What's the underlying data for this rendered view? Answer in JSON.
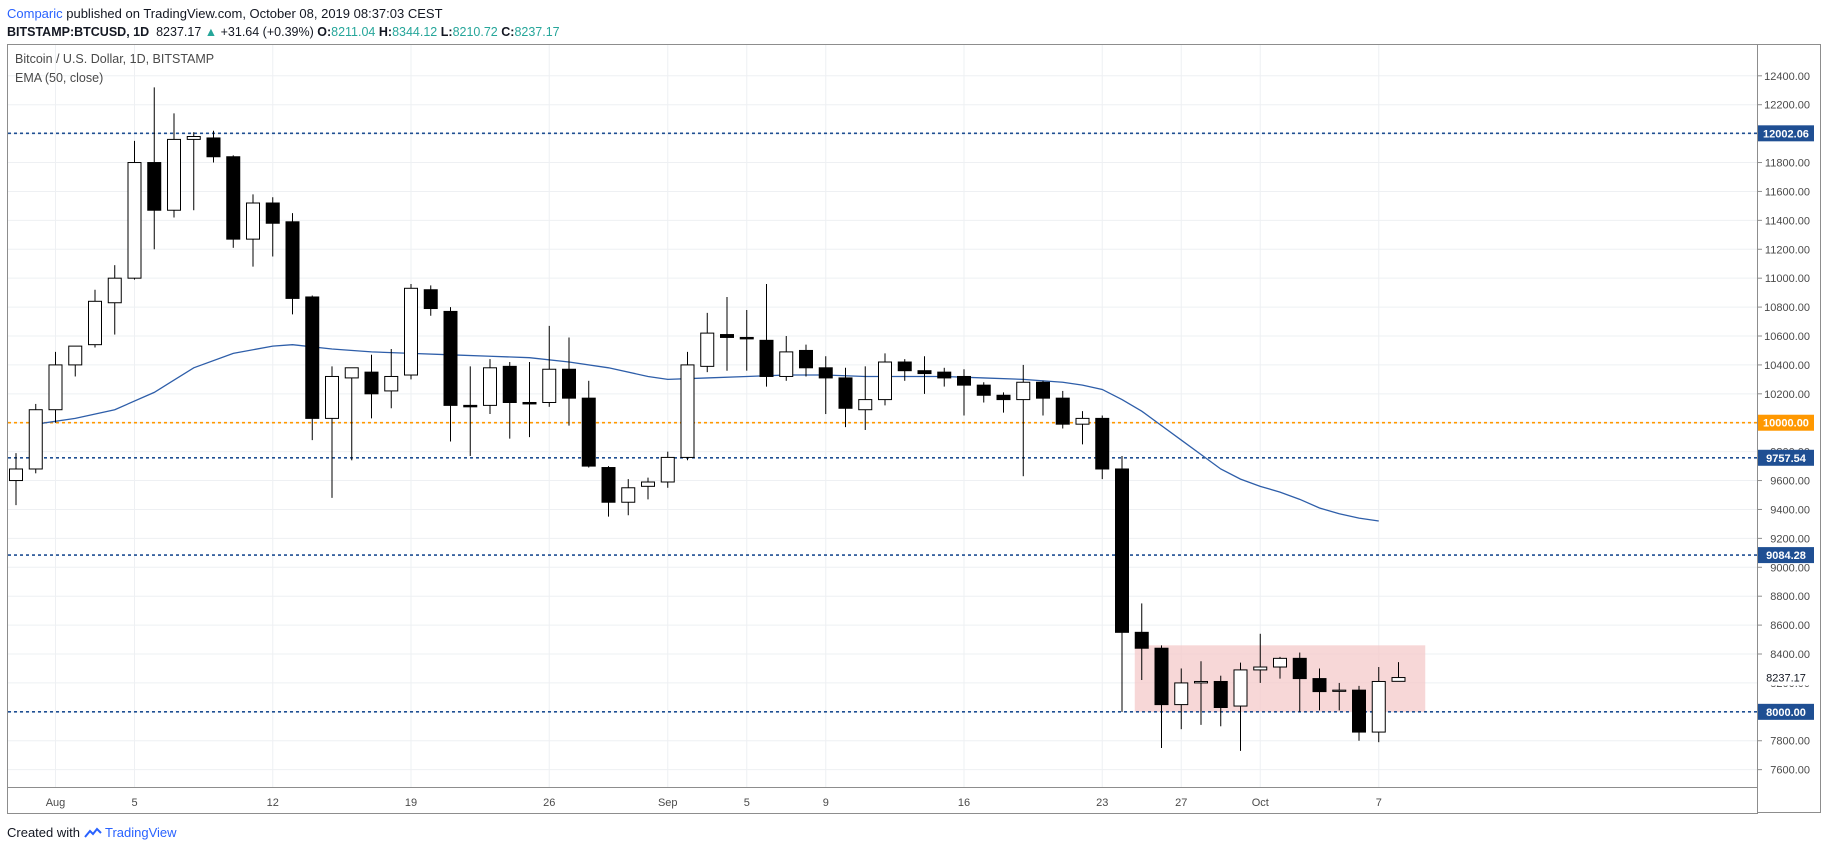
{
  "header": {
    "author": "Comparic",
    "published": " published on TradingView.com, October 08, 2019 08:37:03 CEST",
    "symbol": "BITSTAMP:BTCUSD, 1D",
    "last": "8237.17",
    "change_arrow": "▲",
    "change": "+31.64 (+0.39%)",
    "o_label": "O:",
    "o_value": "8211.04",
    "h_label": "H:",
    "h_value": "8344.12",
    "l_label": "L:",
    "l_value": "8210.72",
    "c_label": "C:",
    "c_value": "8237.17"
  },
  "legend": {
    "title": "Bitcoin / U.S. Dollar, 1D, BITSTAMP",
    "indicator": "EMA (50, close)"
  },
  "footer": {
    "created_with": "Created with",
    "brand": "TradingView"
  },
  "colors": {
    "bull_body": "#ffffff",
    "bear_body": "#000000",
    "ema": "#2e5ea9",
    "level_blue": "#1f4f93",
    "level_orange": "#ff9800",
    "zone_fill": "#f4c9c9",
    "price_label_bg": "#1f4f93",
    "orange_label_bg": "#ff9800"
  },
  "chart_data": {
    "type": "candlestick",
    "title": "Bitcoin / U.S. Dollar, 1D, BITSTAMP",
    "ylim": [
      7480,
      12620
    ],
    "y_ticks": [
      7600,
      7800,
      8000,
      8200,
      8400,
      8600,
      8800,
      9000,
      9200,
      9400,
      9600,
      9800,
      10000,
      10200,
      10400,
      10600,
      10800,
      11000,
      11200,
      11400,
      11600,
      11800,
      12000,
      12200,
      12400
    ],
    "y_tick_labels": [
      "7600.00",
      "7800.00",
      "8000.00",
      "8200.00",
      "8400.00",
      "8600.00",
      "8800.00",
      "9000.00",
      "9200.00",
      "9400.00",
      "9600.00",
      "9800.00",
      "10000.00",
      "10200.00",
      "10400.00",
      "10600.00",
      "10800.00",
      "11000.00",
      "11200.00",
      "11400.00",
      "11600.00",
      "11800.00",
      "12000.00",
      "12200.00",
      "12400.00"
    ],
    "x_labels": [
      {
        "index": 2,
        "label": "Aug"
      },
      {
        "index": 6,
        "label": "5"
      },
      {
        "index": 13,
        "label": "12"
      },
      {
        "index": 20,
        "label": "19"
      },
      {
        "index": 27,
        "label": "26"
      },
      {
        "index": 33,
        "label": "Sep"
      },
      {
        "index": 37,
        "label": "5"
      },
      {
        "index": 41,
        "label": "9"
      },
      {
        "index": 48,
        "label": "16"
      },
      {
        "index": 55,
        "label": "23"
      },
      {
        "index": 59,
        "label": "27"
      },
      {
        "index": 63,
        "label": "Oct"
      },
      {
        "index": 69,
        "label": "7"
      }
    ],
    "candles": [
      [
        9600,
        9790,
        9430,
        9680
      ],
      [
        9680,
        10130,
        9650,
        10090
      ],
      [
        10090,
        10490,
        10000,
        10400
      ],
      [
        10400,
        10510,
        10320,
        10530
      ],
      [
        10540,
        10920,
        10520,
        10840
      ],
      [
        10830,
        11090,
        10610,
        11000
      ],
      [
        11000,
        11950,
        10990,
        11800
      ],
      [
        11800,
        12320,
        11200,
        11470
      ],
      [
        11470,
        12140,
        11420,
        11960
      ],
      [
        11960,
        12010,
        11470,
        11980
      ],
      [
        11970,
        12020,
        11800,
        11840
      ],
      [
        11840,
        11850,
        11210,
        11270
      ],
      [
        11270,
        11580,
        11080,
        11520
      ],
      [
        11520,
        11560,
        11150,
        11380
      ],
      [
        11390,
        11450,
        10750,
        10860
      ],
      [
        10870,
        10880,
        9880,
        10030
      ],
      [
        10030,
        10390,
        9480,
        10320
      ],
      [
        10310,
        10350,
        9740,
        10380
      ],
      [
        10350,
        10470,
        10030,
        10200
      ],
      [
        10220,
        10510,
        10100,
        10320
      ],
      [
        10330,
        10960,
        10300,
        10930
      ],
      [
        10920,
        10950,
        10740,
        10790
      ],
      [
        10770,
        10800,
        9870,
        10120
      ],
      [
        10120,
        10390,
        9770,
        10110
      ],
      [
        10120,
        10440,
        10060,
        10380
      ],
      [
        10390,
        10420,
        9890,
        10140
      ],
      [
        10140,
        10420,
        9900,
        10130
      ],
      [
        10140,
        10670,
        10110,
        10370
      ],
      [
        10370,
        10590,
        9980,
        10170
      ],
      [
        10170,
        10290,
        9690,
        9700
      ],
      [
        9690,
        9700,
        9350,
        9450
      ],
      [
        9450,
        9610,
        9360,
        9550
      ],
      [
        9560,
        9620,
        9470,
        9590
      ],
      [
        9590,
        9800,
        9550,
        9760
      ],
      [
        9760,
        10490,
        9740,
        10400
      ],
      [
        10390,
        10760,
        10350,
        10620
      ],
      [
        10610,
        10870,
        10360,
        10590
      ],
      [
        10590,
        10780,
        10360,
        10580
      ],
      [
        10570,
        10960,
        10250,
        10320
      ],
      [
        10320,
        10600,
        10290,
        10490
      ],
      [
        10500,
        10540,
        10320,
        10380
      ],
      [
        10380,
        10460,
        10060,
        10310
      ],
      [
        10310,
        10380,
        9970,
        10100
      ],
      [
        10090,
        10390,
        9950,
        10160
      ],
      [
        10160,
        10480,
        10120,
        10420
      ],
      [
        10420,
        10440,
        10290,
        10360
      ],
      [
        10360,
        10460,
        10200,
        10340
      ],
      [
        10350,
        10380,
        10250,
        10310
      ],
      [
        10320,
        10370,
        10050,
        10260
      ],
      [
        10260,
        10280,
        10140,
        10190
      ],
      [
        10190,
        10210,
        10070,
        10160
      ],
      [
        10160,
        10400,
        9630,
        10280
      ],
      [
        10280,
        10290,
        10050,
        10170
      ],
      [
        10170,
        10220,
        9960,
        9990
      ],
      [
        9990,
        10080,
        9850,
        10030
      ],
      [
        10030,
        10050,
        9610,
        9680
      ],
      [
        9680,
        9770,
        8000,
        8550
      ],
      [
        8550,
        8750,
        8220,
        8440
      ],
      [
        8440,
        8460,
        7750,
        8050
      ],
      [
        8050,
        8300,
        7880,
        8200
      ],
      [
        8200,
        8350,
        7910,
        8210
      ],
      [
        8210,
        8250,
        7900,
        8030
      ],
      [
        8040,
        8340,
        7730,
        8290
      ],
      [
        8290,
        8540,
        8200,
        8310
      ],
      [
        8310,
        8380,
        8230,
        8370
      ],
      [
        8370,
        8410,
        8000,
        8230
      ],
      [
        8230,
        8300,
        8010,
        8140
      ],
      [
        8150,
        8200,
        8010,
        8150
      ],
      [
        8150,
        8180,
        7800,
        7860
      ],
      [
        7860,
        8310,
        7790,
        8210
      ],
      [
        8211.04,
        8344.12,
        8210.72,
        8237.17
      ]
    ],
    "ema": [
      [
        1,
        9990
      ],
      [
        3,
        10030
      ],
      [
        5,
        10090
      ],
      [
        7,
        10210
      ],
      [
        9,
        10380
      ],
      [
        11,
        10480
      ],
      [
        13,
        10530
      ],
      [
        14,
        10540
      ],
      [
        16,
        10510
      ],
      [
        18,
        10490
      ],
      [
        20,
        10480
      ],
      [
        22,
        10470
      ],
      [
        24,
        10460
      ],
      [
        26,
        10450
      ],
      [
        28,
        10420
      ],
      [
        30,
        10380
      ],
      [
        32,
        10320
      ],
      [
        33,
        10300
      ],
      [
        35,
        10310
      ],
      [
        37,
        10320
      ],
      [
        39,
        10330
      ],
      [
        41,
        10330
      ],
      [
        43,
        10320
      ],
      [
        45,
        10320
      ],
      [
        47,
        10320
      ],
      [
        49,
        10310
      ],
      [
        51,
        10300
      ],
      [
        53,
        10280
      ],
      [
        54,
        10260
      ],
      [
        55,
        10230
      ],
      [
        56,
        10160
      ],
      [
        57,
        10080
      ],
      [
        58,
        9980
      ],
      [
        59,
        9880
      ],
      [
        60,
        9780
      ],
      [
        61,
        9680
      ],
      [
        62,
        9610
      ],
      [
        63,
        9560
      ],
      [
        64,
        9520
      ],
      [
        65,
        9470
      ],
      [
        66,
        9410
      ],
      [
        67,
        9370
      ],
      [
        68,
        9340
      ],
      [
        69,
        9320
      ]
    ],
    "levels": [
      {
        "value": 12002.06,
        "label": "12002.06",
        "color": "blue"
      },
      {
        "value": 10000.0,
        "label": "10000.00",
        "color": "orange"
      },
      {
        "value": 9757.54,
        "label": "9757.54",
        "color": "blue"
      },
      {
        "value": 9084.28,
        "label": "9084.28",
        "color": "blue"
      },
      {
        "value": 8000.0,
        "label": "8000.00",
        "color": "blue"
      }
    ],
    "last_price": {
      "value": 8237.17,
      "label": "8237.17"
    },
    "zone": {
      "start_index": 57,
      "end_index": 71,
      "low": 8000,
      "high": 8460
    }
  }
}
